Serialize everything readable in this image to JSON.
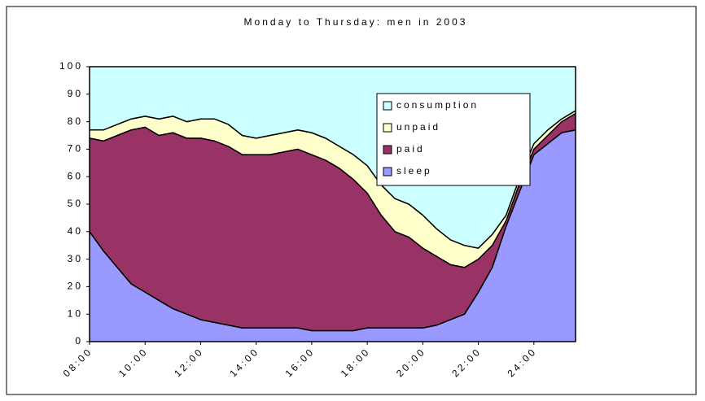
{
  "chart_data": {
    "type": "stacked_area",
    "title": "Monday to Thursday: men in 2003",
    "categories": [
      "08:00",
      null,
      null,
      null,
      "10:00",
      null,
      null,
      null,
      "12:00",
      null,
      null,
      null,
      "14:00",
      null,
      null,
      null,
      "16:00",
      null,
      null,
      null,
      "18:00",
      null,
      null,
      null,
      "20:00",
      null,
      null,
      null,
      "22:00",
      null,
      null,
      null,
      "24:00",
      null,
      null,
      null
    ],
    "series": [
      {
        "name": "sleep",
        "color": "#9999ff",
        "values": [
          40,
          33,
          27,
          21,
          18,
          15,
          12,
          10,
          8,
          7,
          6,
          5,
          5,
          5,
          5,
          5,
          4,
          4,
          4,
          4,
          5,
          5,
          5,
          5,
          5,
          6,
          8,
          10,
          18,
          27,
          42,
          55,
          68,
          72,
          76,
          77
        ]
      },
      {
        "name": "paid",
        "color": "#993366",
        "values": [
          34,
          40,
          48,
          56,
          60,
          60,
          64,
          64,
          66,
          66,
          65,
          63,
          63,
          63,
          64,
          65,
          64,
          62,
          59,
          55,
          49,
          41,
          35,
          33,
          29,
          25,
          20,
          17,
          12,
          8,
          2,
          3,
          2,
          3,
          4,
          6
        ]
      },
      {
        "name": "unpaid",
        "color": "#ffffcc",
        "values": [
          3,
          4,
          4,
          4,
          4,
          6,
          6,
          6,
          7,
          8,
          8,
          7,
          6,
          7,
          7,
          7,
          8,
          8,
          8,
          9,
          10,
          11,
          12,
          12,
          12,
          10,
          9,
          8,
          4,
          4,
          2,
          2,
          2,
          2,
          1,
          1
        ]
      },
      {
        "name": "consumption",
        "color": "#ccffff",
        "values": [
          23,
          23,
          21,
          19,
          18,
          19,
          18,
          20,
          19,
          19,
          21,
          25,
          26,
          25,
          24,
          23,
          24,
          26,
          29,
          32,
          36,
          43,
          48,
          50,
          54,
          59,
          63,
          65,
          66,
          61,
          54,
          40,
          28,
          23,
          19,
          16
        ]
      }
    ],
    "ylim": [
      0,
      100
    ],
    "yticks": [
      0,
      10,
      20,
      30,
      40,
      50,
      60,
      70,
      80,
      90,
      100
    ],
    "legend": "right"
  }
}
